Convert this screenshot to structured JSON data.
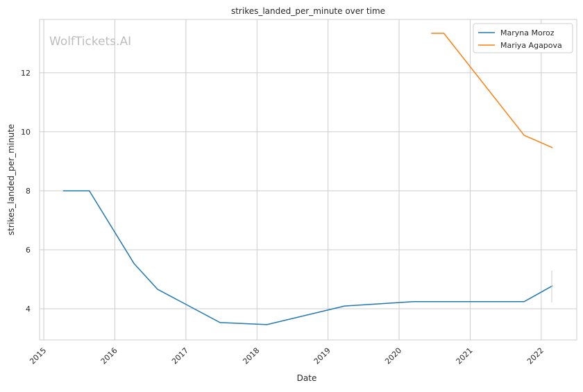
{
  "watermark": "WolfTickets.AI",
  "chart_data": {
    "type": "line",
    "title": "strikes_landed_per_minute over time",
    "xlabel": "Date",
    "ylabel": "strikes_landed_per_minute",
    "xlim": [
      2014.94,
      2022.5
    ],
    "ylim": [
      2.94,
      13.81
    ],
    "xticks": [
      2015,
      2016,
      2017,
      2018,
      2019,
      2020,
      2021,
      2022
    ],
    "yticks": [
      4,
      6,
      8,
      10,
      12
    ],
    "grid": true,
    "legend_placement": "top-right",
    "series": [
      {
        "name": "Maryna Moroz",
        "color": "#1f77b4",
        "x": [
          2015.27,
          2015.64,
          2016.27,
          2016.6,
          2017.48,
          2018.14,
          2019.23,
          2020.2,
          2021.76,
          2022.16
        ],
        "y": [
          8.0,
          8.0,
          5.53,
          4.66,
          3.53,
          3.46,
          4.09,
          4.24,
          4.24,
          4.78
        ]
      },
      {
        "name": "Mariya Agapova",
        "color": "#ff7f0e",
        "x": [
          2020.45,
          2020.63,
          2021.76,
          2022.16
        ],
        "y": [
          13.34,
          13.34,
          9.88,
          9.46
        ]
      }
    ]
  }
}
